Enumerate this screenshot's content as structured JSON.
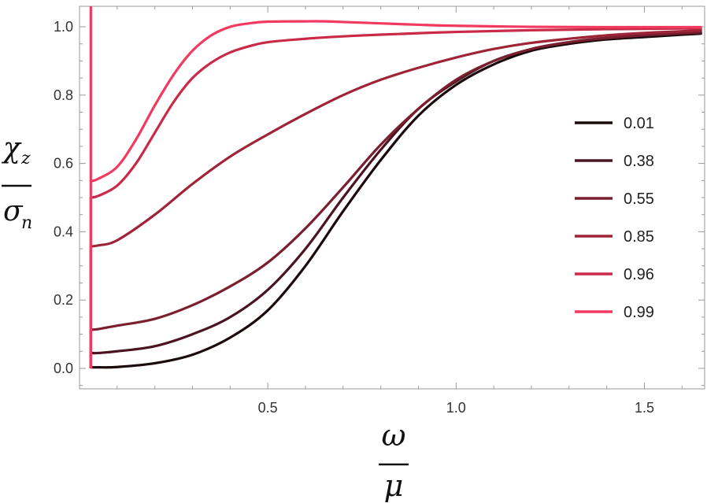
{
  "chart_data": {
    "type": "line",
    "title": "",
    "xlabel": {
      "numerator": "ω",
      "denominator": "μ"
    },
    "ylabel": {
      "numerator": "χ",
      "numerator_sub": "z",
      "denominator": "σ",
      "denominator_sub": "n"
    },
    "xlim": [
      0.0,
      1.66
    ],
    "ylim": [
      -0.06,
      1.06
    ],
    "xticks": [
      0.5,
      1.0,
      1.5
    ],
    "xtick_labels": [
      "0.5",
      "1.0",
      "1.5"
    ],
    "yticks": [
      0.0,
      0.2,
      0.4,
      0.6,
      0.8,
      1.0
    ],
    "ytick_labels": [
      "0.0",
      "0.2",
      "0.4",
      "0.6",
      "0.8",
      "1.0"
    ],
    "grid": false,
    "frame": true,
    "legend_position": "right",
    "series": [
      {
        "name": "0.01",
        "color": "#1a0a0c",
        "x": [
          0.03,
          0.05,
          0.1,
          0.2,
          0.3,
          0.4,
          0.5,
          0.6,
          0.7,
          0.8,
          0.9,
          1.0,
          1.1,
          1.2,
          1.3,
          1.4,
          1.5,
          1.6,
          1.65
        ],
        "y": [
          0.003,
          0.003,
          0.004,
          0.015,
          0.04,
          0.09,
          0.17,
          0.3,
          0.46,
          0.61,
          0.74,
          0.83,
          0.89,
          0.93,
          0.95,
          0.963,
          0.97,
          0.977,
          0.98
        ]
      },
      {
        "name": "0.38",
        "color": "#4a1520",
        "x": [
          0.03,
          0.05,
          0.1,
          0.2,
          0.3,
          0.4,
          0.5,
          0.6,
          0.7,
          0.8,
          0.9,
          1.0,
          1.1,
          1.2,
          1.3,
          1.4,
          1.5,
          1.6,
          1.65
        ],
        "y": [
          0.045,
          0.045,
          0.05,
          0.065,
          0.1,
          0.15,
          0.23,
          0.35,
          0.5,
          0.64,
          0.76,
          0.84,
          0.9,
          0.935,
          0.955,
          0.966,
          0.974,
          0.98,
          0.982
        ]
      },
      {
        "name": "0.55",
        "color": "#7a1f30",
        "x": [
          0.03,
          0.05,
          0.1,
          0.2,
          0.3,
          0.4,
          0.5,
          0.6,
          0.7,
          0.8,
          0.9,
          1.0,
          1.1,
          1.2,
          1.3,
          1.4,
          1.5,
          1.6,
          1.65
        ],
        "y": [
          0.113,
          0.115,
          0.125,
          0.145,
          0.185,
          0.24,
          0.31,
          0.41,
          0.53,
          0.655,
          0.76,
          0.845,
          0.9,
          0.935,
          0.955,
          0.968,
          0.976,
          0.982,
          0.985
        ]
      },
      {
        "name": "0.85",
        "color": "#a02438",
        "x": [
          0.03,
          0.05,
          0.1,
          0.2,
          0.3,
          0.4,
          0.5,
          0.6,
          0.7,
          0.8,
          0.9,
          1.0,
          1.1,
          1.2,
          1.3,
          1.4,
          1.5,
          1.6,
          1.65
        ],
        "y": [
          0.357,
          0.36,
          0.375,
          0.45,
          0.54,
          0.62,
          0.685,
          0.745,
          0.8,
          0.845,
          0.88,
          0.91,
          0.935,
          0.953,
          0.965,
          0.975,
          0.982,
          0.987,
          0.99
        ]
      },
      {
        "name": "0.96",
        "color": "#c92a48",
        "x": [
          0.03,
          0.05,
          0.1,
          0.15,
          0.2,
          0.25,
          0.3,
          0.35,
          0.4,
          0.45,
          0.5,
          0.6,
          0.7,
          0.8,
          1.0,
          1.2,
          1.4,
          1.6,
          1.65
        ],
        "y": [
          0.5,
          0.505,
          0.535,
          0.6,
          0.69,
          0.78,
          0.85,
          0.895,
          0.925,
          0.943,
          0.955,
          0.965,
          0.972,
          0.977,
          0.985,
          0.99,
          0.993,
          0.995,
          0.996
        ]
      },
      {
        "name": "0.99",
        "color": "#f23a60",
        "x": [
          0.03,
          0.05,
          0.1,
          0.15,
          0.2,
          0.25,
          0.3,
          0.35,
          0.4,
          0.45,
          0.5,
          0.6,
          0.65,
          0.7,
          0.8,
          0.9,
          1.0,
          1.2,
          1.4,
          1.6,
          1.65
        ],
        "y": [
          0.548,
          0.555,
          0.59,
          0.67,
          0.77,
          0.86,
          0.93,
          0.975,
          1.0,
          1.01,
          1.015,
          1.016,
          1.016,
          1.014,
          1.01,
          1.006,
          1.003,
          1.0,
          0.999,
          0.999,
          0.999
        ]
      }
    ]
  }
}
